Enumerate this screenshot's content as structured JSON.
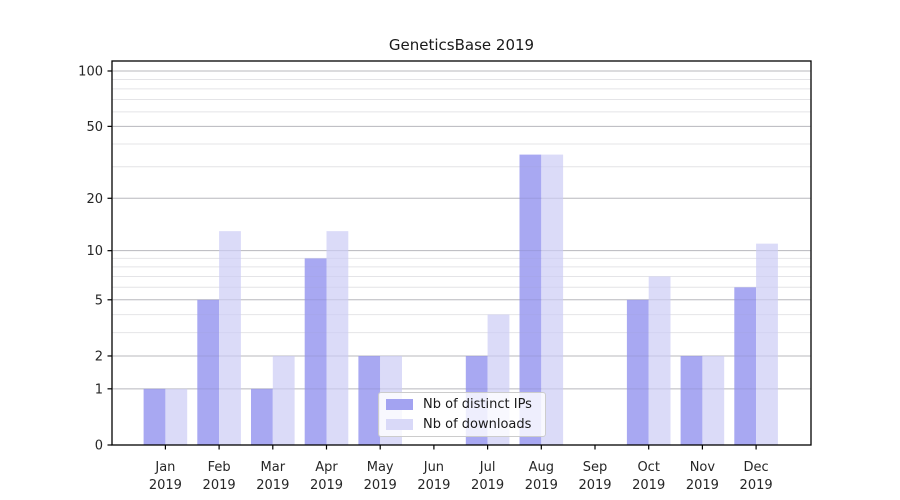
{
  "chart_data": {
    "type": "bar",
    "title": "GeneticsBase 2019",
    "categories": [
      "Jan",
      "Feb",
      "Mar",
      "Apr",
      "May",
      "Jun",
      "Jul",
      "Aug",
      "Sep",
      "Oct",
      "Nov",
      "Dec"
    ],
    "year_label": "2019",
    "series": [
      {
        "name": "Nb of distinct IPs",
        "color": "#a3a3f1",
        "values": [
          1,
          5,
          1,
          9,
          2,
          0,
          2,
          35,
          0,
          5,
          2,
          6
        ]
      },
      {
        "name": "Nb of downloads",
        "color": "#d9d9f8",
        "values": [
          1,
          13,
          2,
          13,
          2,
          0,
          4,
          35,
          0,
          7,
          2,
          11
        ]
      }
    ],
    "xlabel": "",
    "ylabel": "",
    "y_axis": {
      "scale": "log1p",
      "ticks": [
        0,
        1,
        2,
        5,
        10,
        20,
        50,
        100
      ],
      "minor_ticks": [
        3,
        4,
        6,
        7,
        8,
        9,
        30,
        40,
        60,
        70,
        80,
        90
      ],
      "ylim": [
        0,
        113
      ]
    },
    "grid": {
      "major_color": "#c9c9c9",
      "minor_color": "#ececec"
    },
    "legend": {
      "position": "lower center"
    },
    "colors": {
      "spine": "#000000",
      "tick_label": "#262626",
      "background": "#ffffff"
    }
  }
}
